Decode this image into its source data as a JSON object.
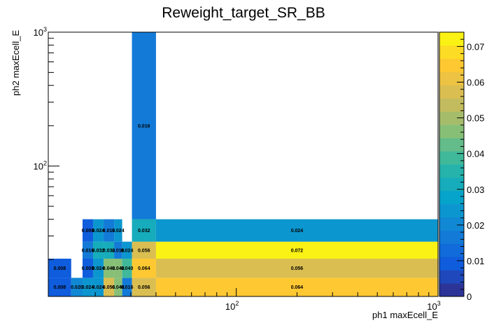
{
  "chart_data": {
    "type": "heatmap",
    "title": "Reweight_target_SR_BB",
    "xlabel": "ph1 maxEcell_E",
    "ylabel": "ph2 maxEcell_E",
    "xscale": "log",
    "yscale": "log",
    "xlim": [
      11.7,
      1000
    ],
    "ylim": [
      10.6,
      1000
    ],
    "x_ticks": [
      {
        "value": 100,
        "base": "10",
        "exp": "2"
      },
      {
        "value": 1000,
        "base": "10",
        "exp": "3"
      }
    ],
    "y_ticks": [
      {
        "value": 100,
        "base": "10",
        "exp": "2"
      },
      {
        "value": 1000,
        "base": "10",
        "exp": "3"
      }
    ],
    "x_edges": [
      11.7,
      15.2,
      17.3,
      19.5,
      22.0,
      24.8,
      27.2,
      30.4,
      40.0,
      1000
    ],
    "y_edges": [
      10.6,
      14.6,
      20.3,
      27.2,
      40.0,
      1000
    ],
    "cells": [
      {
        "xi": 0,
        "yi": 0,
        "value": 0.008,
        "label": "0.008"
      },
      {
        "xi": 1,
        "yi": 0,
        "value": 0.02,
        "label": "0.020"
      },
      {
        "xi": 2,
        "yi": 0,
        "value": 0.024,
        "label": "0.024"
      },
      {
        "xi": 3,
        "yi": 0,
        "value": 0.024,
        "label": "0.024"
      },
      {
        "xi": 4,
        "yi": 0,
        "value": 0.056,
        "label": "0.056"
      },
      {
        "xi": 5,
        "yi": 0,
        "value": 0.048,
        "label": "0.048"
      },
      {
        "xi": 6,
        "yi": 0,
        "value": 0.016,
        "label": "0.016"
      },
      {
        "xi": 7,
        "yi": 0,
        "value": 0.056,
        "label": "0.056"
      },
      {
        "xi": 8,
        "yi": 0,
        "value": 0.064,
        "label": "0.064"
      },
      {
        "xi": 0,
        "yi": 1,
        "value": 0.008,
        "label": "0.008"
      },
      {
        "xi": 2,
        "yi": 1,
        "value": 0.008,
        "label": "0.008"
      },
      {
        "xi": 3,
        "yi": 1,
        "value": 0.024,
        "label": "0.024"
      },
      {
        "xi": 4,
        "yi": 1,
        "value": 0.048,
        "label": "0.048"
      },
      {
        "xi": 5,
        "yi": 1,
        "value": 0.048,
        "label": "0.048"
      },
      {
        "xi": 6,
        "yi": 1,
        "value": 0.04,
        "label": "0.040"
      },
      {
        "xi": 7,
        "yi": 1,
        "value": 0.064,
        "label": "0.064"
      },
      {
        "xi": 8,
        "yi": 1,
        "value": 0.056,
        "label": "0.056"
      },
      {
        "xi": 2,
        "yi": 2,
        "value": 0.016,
        "label": "0.016"
      },
      {
        "xi": 3,
        "yi": 2,
        "value": 0.032,
        "label": "0.032"
      },
      {
        "xi": 4,
        "yi": 2,
        "value": 0.032,
        "label": "0.032"
      },
      {
        "xi": 5,
        "yi": 2,
        "value": 0.016,
        "label": "0.016"
      },
      {
        "xi": 6,
        "yi": 2,
        "value": 0.024,
        "label": "0.024"
      },
      {
        "xi": 7,
        "yi": 2,
        "value": 0.056,
        "label": "0.056"
      },
      {
        "xi": 8,
        "yi": 2,
        "value": 0.072,
        "label": "0.072"
      },
      {
        "xi": 2,
        "yi": 3,
        "value": 0.008,
        "label": "0.008"
      },
      {
        "xi": 3,
        "yi": 3,
        "value": 0.024,
        "label": "0.024"
      },
      {
        "xi": 4,
        "yi": 3,
        "value": 0.016,
        "label": "0.016"
      },
      {
        "xi": 5,
        "yi": 3,
        "value": 0.024,
        "label": "0.024"
      },
      {
        "xi": 7,
        "yi": 3,
        "value": 0.032,
        "label": "0.032"
      },
      {
        "xi": 8,
        "yi": 3,
        "value": 0.024,
        "label": "0.024"
      },
      {
        "xi": 7,
        "yi": 4,
        "value": 0.016,
        "label": "0.016"
      }
    ],
    "zlim": [
      0,
      0.074
    ],
    "colorbar_ticks": [
      {
        "value": 0,
        "label": "0"
      },
      {
        "value": 0.01,
        "label": "0.01"
      },
      {
        "value": 0.02,
        "label": "0.02"
      },
      {
        "value": 0.03,
        "label": "0.03"
      },
      {
        "value": 0.04,
        "label": "0.04"
      },
      {
        "value": 0.05,
        "label": "0.05"
      },
      {
        "value": 0.06,
        "label": "0.06"
      },
      {
        "value": 0.07,
        "label": "0.07"
      }
    ],
    "palette": [
      "#352a87",
      "#0f5cdd",
      "#1481d6",
      "#06a4ca",
      "#2eb7a4",
      "#87bf77",
      "#d1bb59",
      "#fec832",
      "#f9fb0e"
    ],
    "grid": false,
    "legend": "colorbar-right"
  }
}
